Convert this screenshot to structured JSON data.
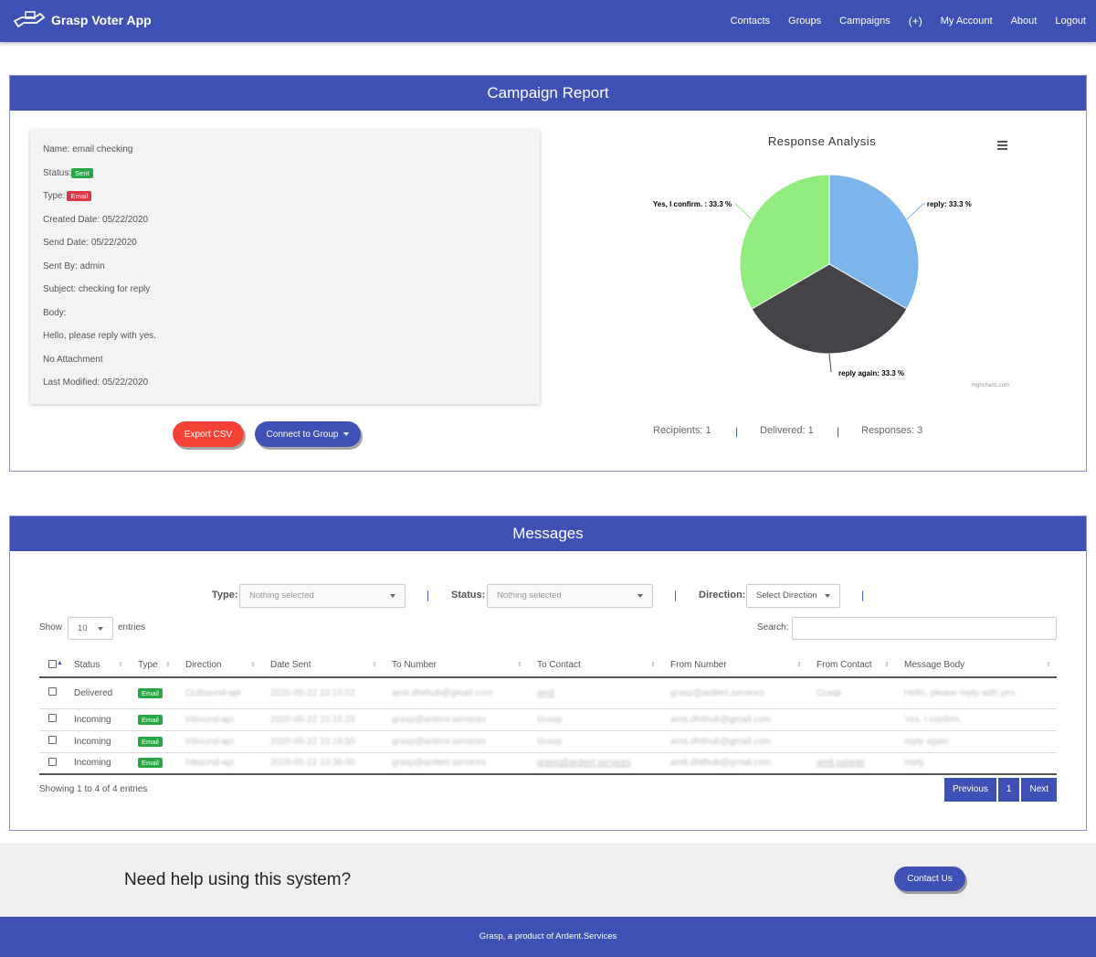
{
  "app": {
    "title": "Grasp Voter App"
  },
  "nav": [
    "Contacts",
    "Groups",
    "Campaigns",
    "(+)",
    "My Account",
    "About",
    "Logout"
  ],
  "report": {
    "title": "Campaign Report",
    "name_label": "Name: email checking",
    "status_label": "Status:",
    "status_value": "Sent",
    "type_label": "Type:",
    "type_value": "Email",
    "created": "Created Date: 05/22/2020",
    "send": "Send Date: 05/22/2020",
    "sent_by": "Sent By: admin",
    "subject": "Subject: checking for reply",
    "body_label": "Body:",
    "body": "Hello, please reply with yes.",
    "attachment": "No Attachment",
    "modified": "Last Modified: 05/22/2020",
    "export_button": "Export CSV",
    "connect_button": "Connect to Group",
    "recipients": "Recipients: 1",
    "delivered": "Delivered: 1",
    "responses": "Responses: 3",
    "separator": "|"
  },
  "chart_data": {
    "type": "pie",
    "title": "Response Analysis",
    "credit": "Highcharts.com",
    "slices": [
      {
        "name": "reply",
        "value": 33.3,
        "label": "reply: 33.3 %",
        "color": "#7cb5ec"
      },
      {
        "name": "reply again",
        "value": 33.3,
        "label": "reply again: 33.3 %",
        "color": "#434348"
      },
      {
        "name": "Yes, I confirm.",
        "value": 33.3,
        "label": "Yes, I confirm. : 33.3 %",
        "color": "#90ed7d"
      }
    ]
  },
  "messages": {
    "title": "Messages",
    "filters": {
      "type_label": "Type:",
      "type_placeholder": "Nothing selected",
      "status_label": "Status:",
      "status_placeholder": "Nothing selected",
      "direction_label": "Direction:",
      "direction_placeholder": "Select Direction"
    },
    "show_label": "Show",
    "entries_value": "10",
    "entries_label": "entries",
    "search_label": "Search:",
    "columns": [
      "Status",
      "Type",
      "Direction",
      "Date Sent",
      "To Number",
      "To Contact",
      "From Number",
      "From Contact",
      "Message Body"
    ],
    "rows": [
      {
        "status": "Delivered",
        "type": "Email",
        "direction": "Outbound-api",
        "date": "2020-05-22 10:15:02",
        "to_number": "amit.dhithub@gmail.com",
        "to_contact": "amit",
        "from_number": "grasp@ardent.services",
        "from_contact": "Grasp",
        "body": "Hello, please reply with yes."
      },
      {
        "status": "Incoming",
        "type": "Email",
        "direction": "Inbound-api",
        "date": "2020-05-22 10:15:29",
        "to_number": "grasp@ardent.services",
        "to_contact": "Grasp",
        "from_number": "amit.dhithub@gmail.com",
        "from_contact": "",
        "body": "Yes, I confirm."
      },
      {
        "status": "Incoming",
        "type": "Email",
        "direction": "Inbound-api",
        "date": "2020-05-22 10:18:55",
        "to_number": "grasp@ardent.services",
        "to_contact": "Grasp",
        "from_number": "amit.dhithub@gmail.com",
        "from_contact": "",
        "body": "reply again"
      },
      {
        "status": "Incoming",
        "type": "Email",
        "direction": "Inbound-api",
        "date": "2020-05-22 10:36:00",
        "to_number": "grasp@ardent.services",
        "to_contact": "grasp@ardent.services",
        "from_number": "amit.dhithub@gmail.com",
        "from_contact": "amit.solanki",
        "body": "reply"
      }
    ],
    "showing": "Showing 1 to 4 of 4 entries",
    "prev": "Previous",
    "page": "1",
    "next": "Next"
  },
  "help": {
    "text": "Need help using this system?",
    "button": "Contact Us"
  },
  "footer": {
    "text": "Grasp, a product of Ardent.Services"
  }
}
